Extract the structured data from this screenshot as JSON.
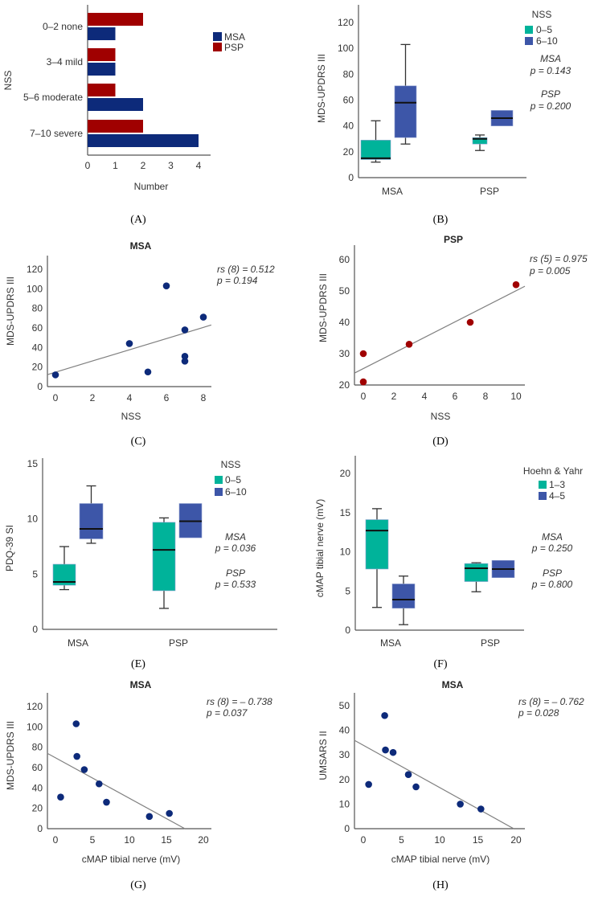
{
  "figure": {
    "panel_labels": [
      "(A)",
      "(B)",
      "(C)",
      "(D)",
      "(E)",
      "(F)",
      "(G)",
      "(H)"
    ]
  },
  "colors": {
    "MSA": "#0d2a7a",
    "PSP": "#a00000",
    "low_group": "#00b39a",
    "high_group": "#3d56a8",
    "fit_line": "#808080",
    "axis": "#555555"
  },
  "chart_data": [
    {
      "panel": "A",
      "type": "bar",
      "orientation": "horizontal",
      "categories": [
        "0–2 none",
        "3–4 mild",
        "5–6 moderate",
        "7–10 severe"
      ],
      "series": [
        {
          "name": "MSA",
          "values": [
            1,
            1,
            2,
            4
          ]
        },
        {
          "name": "PSP",
          "values": [
            2,
            1,
            1,
            2
          ]
        }
      ],
      "xlabel": "Number",
      "ylabel": "NSS",
      "xlim": [
        0,
        4.4
      ],
      "xticks": [
        0,
        1,
        2,
        3,
        4
      ],
      "legend": {
        "position": "right",
        "entries": [
          "MSA",
          "PSP"
        ]
      },
      "grid": false
    },
    {
      "panel": "B",
      "type": "box",
      "ylabel": "MDS-UPDRS III",
      "ylim": [
        0,
        133
      ],
      "yticks": [
        0,
        20,
        40,
        60,
        80,
        100,
        120
      ],
      "categories": [
        "MSA",
        "PSP"
      ],
      "legend": {
        "title": "NSS",
        "position": "top-right",
        "entries": [
          "0–5",
          "6–10"
        ]
      },
      "series": [
        {
          "name": "0–5",
          "boxes": [
            {
              "min": 12,
              "q1": 14,
              "median": 15,
              "q3": 29,
              "max": 44
            },
            {
              "min": 21,
              "q1": 26,
              "median": 30,
              "q3": 31,
              "max": 33
            }
          ]
        },
        {
          "name": "6–10",
          "boxes": [
            {
              "min": 26,
              "q1": 31,
              "median": 58,
              "q3": 71,
              "max": 103
            },
            {
              "min": 40,
              "q1": 40,
              "median": 46,
              "q3": 52,
              "max": 52
            }
          ]
        }
      ],
      "annotations": [
        [
          "MSA",
          "p = 0.143"
        ],
        [
          "PSP",
          "p = 0.200"
        ]
      ],
      "grid": false
    },
    {
      "panel": "C",
      "type": "scatter",
      "title": "MSA",
      "xlabel": "NSS",
      "ylabel": "MDS-UPDRS III",
      "xlim": [
        -0.4,
        8.4
      ],
      "ylim": [
        0,
        133
      ],
      "xticks": [
        0,
        2,
        4,
        6,
        8
      ],
      "yticks": [
        0,
        20,
        40,
        60,
        80,
        100,
        120
      ],
      "points": [
        [
          0,
          12
        ],
        [
          4,
          44
        ],
        [
          5,
          15
        ],
        [
          6,
          103
        ],
        [
          7,
          58
        ],
        [
          7,
          31
        ],
        [
          7,
          26
        ],
        [
          8,
          71
        ]
      ],
      "fit_line": [
        [
          -0.43,
          12.3
        ],
        [
          8.43,
          63
        ]
      ],
      "annotation": [
        "rs (8) = 0.512",
        "p = 0.194"
      ],
      "series_color": "MSA",
      "grid": false
    },
    {
      "panel": "D",
      "type": "scatter",
      "title": "PSP",
      "xlabel": "NSS",
      "ylabel": "MDS-UPDRS III",
      "xlim": [
        -0.6,
        10.6
      ],
      "ylim": [
        20,
        64
      ],
      "xticks": [
        0,
        2,
        4,
        6,
        8,
        10
      ],
      "yticks": [
        20,
        30,
        40,
        50,
        60
      ],
      "points": [
        [
          0,
          30
        ],
        [
          0,
          21
        ],
        [
          3,
          33
        ],
        [
          7,
          40
        ],
        [
          10,
          52
        ]
      ],
      "fit_line": [
        [
          -0.58,
          23.8
        ],
        [
          10.58,
          51.5
        ]
      ],
      "annotation": [
        "rs (5) = 0.975",
        "p = 0.005"
      ],
      "series_color": "PSP",
      "grid": false
    },
    {
      "panel": "E",
      "type": "box",
      "ylabel": "PDQ-39 SI",
      "ylim": [
        0,
        15
      ],
      "yticks": [
        0,
        5,
        10,
        15
      ],
      "categories": [
        "MSA",
        "PSP"
      ],
      "legend": {
        "title": "NSS",
        "position": "top-right",
        "entries": [
          "0–5",
          "6–10"
        ]
      },
      "series": [
        {
          "name": "0–5",
          "boxes": [
            {
              "min": 3.6,
              "q1": 4.0,
              "median": 4.3,
              "q3": 5.9,
              "max": 7.5
            },
            {
              "min": 1.9,
              "q1": 3.5,
              "median": 7.2,
              "q3": 9.7,
              "max": 10.1
            }
          ]
        },
        {
          "name": "6–10",
          "boxes": [
            {
              "min": 7.8,
              "q1": 8.2,
              "median": 9.1,
              "q3": 11.4,
              "max": 13.0
            },
            {
              "min": 8.3,
              "q1": 8.3,
              "median": 9.8,
              "q3": 11.4,
              "max": 11.4
            }
          ]
        }
      ],
      "annotations": [
        [
          "MSA",
          "p = 0.036"
        ],
        [
          "PSP",
          "p = 0.533"
        ]
      ],
      "grid": false
    },
    {
      "panel": "F",
      "type": "box",
      "ylabel": "cMAP tibial nerve (mV)",
      "ylim": [
        0,
        22
      ],
      "yticks": [
        0,
        5,
        10,
        15,
        20
      ],
      "categories": [
        "MSA",
        "PSP"
      ],
      "legend": {
        "title": "Hoehn & Yahr",
        "position": "top-right",
        "entries": [
          "1–3",
          "4–5"
        ]
      },
      "series": [
        {
          "name": "1–3",
          "boxes": [
            {
              "min": 2.9,
              "q1": 7.8,
              "median": 12.7,
              "q3": 14.1,
              "max": 15.5
            },
            {
              "min": 4.9,
              "q1": 6.2,
              "median": 7.9,
              "q3": 8.5,
              "max": 8.6
            }
          ]
        },
        {
          "name": "4–5",
          "boxes": [
            {
              "min": 0.7,
              "q1": 2.8,
              "median": 3.9,
              "q3": 5.9,
              "max": 6.9
            },
            {
              "min": 6.7,
              "q1": 6.7,
              "median": 7.8,
              "q3": 8.9,
              "max": 8.9
            }
          ]
        }
      ],
      "annotations": [
        [
          "MSA",
          "p = 0.250"
        ],
        [
          "PSP",
          "p = 0.800"
        ]
      ],
      "grid": false
    },
    {
      "panel": "G",
      "type": "scatter",
      "title": "MSA",
      "xlabel": "cMAP tibial nerve (mV)",
      "ylabel": "MDS-UPDRS III",
      "xlim": [
        -1.1,
        21
      ],
      "ylim": [
        0,
        133
      ],
      "xticks": [
        0,
        5,
        10,
        15,
        20
      ],
      "yticks": [
        0,
        20,
        40,
        60,
        80,
        100,
        120
      ],
      "points": [
        [
          0.7,
          31
        ],
        [
          2.8,
          103
        ],
        [
          2.9,
          71
        ],
        [
          3.9,
          58
        ],
        [
          5.9,
          44
        ],
        [
          6.9,
          26
        ],
        [
          12.7,
          12
        ],
        [
          15.4,
          15
        ]
      ],
      "fit_line": [
        [
          -1.1,
          74
        ],
        [
          17.5,
          0
        ]
      ],
      "annotation": [
        "rs (8) = – 0.738",
        "p = 0.037"
      ],
      "series_color": "MSA",
      "grid": false
    },
    {
      "panel": "H",
      "type": "scatter",
      "title": "MSA",
      "xlabel": "cMAP tibial nerve (mV)",
      "ylabel": "UMSARS II",
      "xlim": [
        -1.2,
        21
      ],
      "ylim": [
        0,
        55
      ],
      "xticks": [
        0,
        5,
        10,
        15,
        20
      ],
      "yticks": [
        0,
        10,
        20,
        30,
        40,
        50
      ],
      "points": [
        [
          0.7,
          18
        ],
        [
          2.8,
          46
        ],
        [
          2.9,
          32
        ],
        [
          3.9,
          31
        ],
        [
          5.9,
          22
        ],
        [
          6.9,
          17
        ],
        [
          12.7,
          10
        ],
        [
          15.4,
          8
        ]
      ],
      "fit_line": [
        [
          -1.2,
          36
        ],
        [
          19.7,
          0
        ]
      ],
      "annotation": [
        "rs (8) = – 0.762",
        "p = 0.028"
      ],
      "series_color": "MSA",
      "grid": false
    }
  ]
}
